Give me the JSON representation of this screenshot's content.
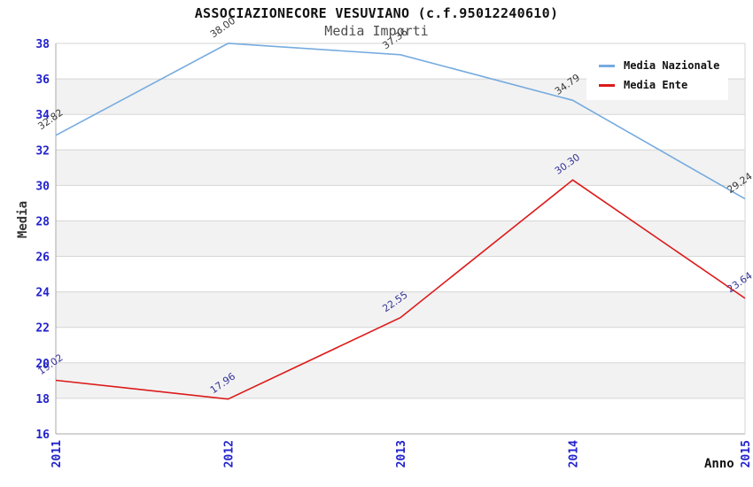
{
  "chart_data": {
    "type": "line",
    "title": "ASSOCIAZIONECORE VESUVIANO (c.f.95012240610)",
    "subtitle": "Media Importi",
    "categories": [
      "2011",
      "2012",
      "2013",
      "2014",
      "2015"
    ],
    "series": [
      {
        "name": "Media Nazionale",
        "color": "#76abdf",
        "label_color": "#3a3a3a",
        "values": [
          32.82,
          38.0,
          37.36,
          34.79,
          29.24
        ]
      },
      {
        "name": "Media Ente",
        "color": "#dd1a1a",
        "label_color": "#333399",
        "values": [
          19.02,
          17.96,
          22.55,
          30.3,
          23.64
        ]
      }
    ],
    "xlabel": "Anno",
    "ylabel": "Media",
    "ylim": [
      16,
      38
    ],
    "yticks": [
      16,
      18,
      20,
      22,
      24,
      26,
      28,
      30,
      32,
      34,
      36,
      38
    ],
    "grid": true,
    "legend_position": "top-right",
    "styles": {
      "band_color": "#f2f2f2",
      "grid_color": "#d6d6d6",
      "axis_color": "#aaaaaa",
      "right_border_color": "#d6d6d6",
      "tick_label_color": "#2222cc",
      "value_label_rotation": -35
    }
  }
}
